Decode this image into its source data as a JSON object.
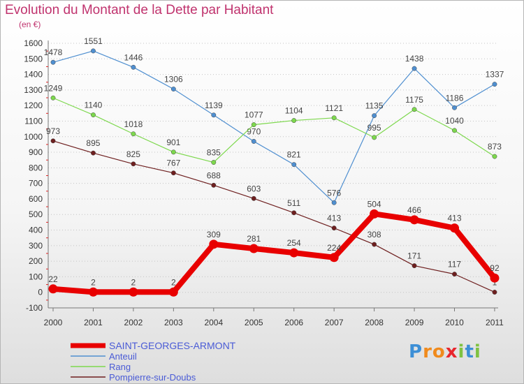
{
  "chart_data": {
    "type": "line",
    "title": "Evolution du Montant de la Dette par Habitant",
    "unit_label": "(en €)",
    "x": [
      "2000",
      "2001",
      "2002",
      "2003",
      "2004",
      "2005",
      "2006",
      "2007",
      "2008",
      "2009",
      "2010",
      "2011"
    ],
    "ylim": [
      -100,
      1600
    ],
    "yticks": [
      -100,
      0,
      100,
      200,
      300,
      400,
      500,
      600,
      700,
      800,
      900,
      1000,
      1100,
      1200,
      1300,
      1400,
      1500,
      1600
    ],
    "grid": "horizontal dotted",
    "legend_position": "bottom-left",
    "series": [
      {
        "name": "SAINT-GEORGES-ARMONT",
        "color": "#e80000",
        "emphasis": true,
        "values": [
          22,
          2,
          2,
          2,
          309,
          281,
          254,
          224,
          504,
          466,
          413,
          92
        ]
      },
      {
        "name": "Anteuil",
        "color": "#4f8fd0",
        "emphasis": false,
        "values": [
          1478,
          1551,
          1446,
          1306,
          1139,
          970,
          821,
          576,
          1135,
          1438,
          1186,
          1337
        ]
      },
      {
        "name": "Rang",
        "color": "#7dd84d",
        "emphasis": false,
        "values": [
          1249,
          1140,
          1018,
          901,
          835,
          1077,
          1104,
          1121,
          995,
          1175,
          1040,
          873
        ]
      },
      {
        "name": "Pompierre-sur-Doubs",
        "color": "#6e1f1f",
        "emphasis": false,
        "values": [
          973,
          895,
          825,
          767,
          688,
          603,
          511,
          413,
          308,
          171,
          117,
          1
        ]
      }
    ]
  },
  "logo": {
    "text": "Proxiti",
    "letters": [
      {
        "ch": "P",
        "color": "#3d8fd6"
      },
      {
        "ch": "r",
        "color": "#f08a1c"
      },
      {
        "ch": "o",
        "color": "#f08a1c"
      },
      {
        "ch": "x",
        "color": "#e8262d"
      },
      {
        "ch": "i",
        "color": "#7fc241"
      },
      {
        "ch": "t",
        "color": "#3d8fd6"
      },
      {
        "ch": "i",
        "color": "#7fc241"
      }
    ]
  }
}
